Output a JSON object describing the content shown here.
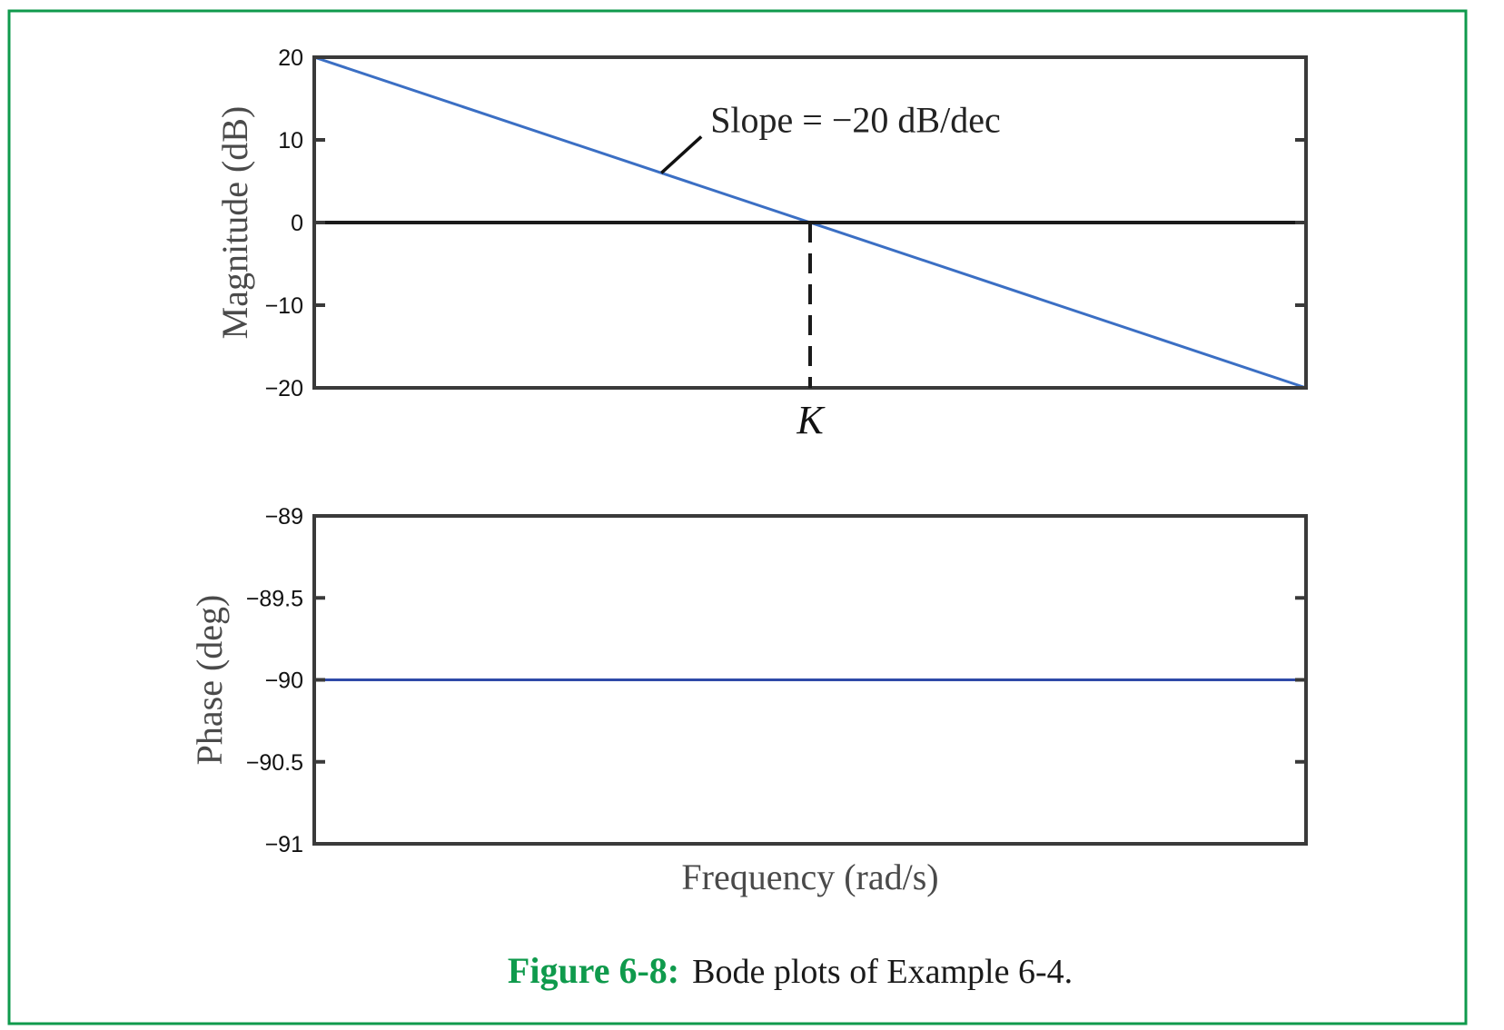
{
  "chart_data": [
    {
      "type": "line",
      "ylabel": "Magnitude (dB)",
      "ylim": [
        -20,
        20
      ],
      "yticks": [
        20,
        10,
        0,
        -10,
        -20
      ],
      "ytick_labels": [
        "20",
        "10",
        "0",
        "−10",
        "−20"
      ],
      "x_log_decades": [
        -1,
        1
      ],
      "series": [
        {
          "color": "#3b6fc4",
          "x": [
            0.1,
            10
          ],
          "y": [
            20,
            -20
          ]
        },
        {
          "color": "#1a1a1a",
          "x": [
            0.1,
            10
          ],
          "y": [
            0,
            0
          ]
        }
      ],
      "annotations": {
        "slope_label": "Slope = −20 dB/dec",
        "crossover_label": "K",
        "crossover_x": 1
      },
      "grid": false
    },
    {
      "type": "line",
      "ylabel": "Phase (deg)",
      "xlabel": "Frequency (rad/s)",
      "ylim": [
        -91,
        -89
      ],
      "yticks": [
        -89,
        -89.5,
        -90,
        -90.5,
        -91
      ],
      "ytick_labels": [
        "−89",
        "−89.5",
        "−90",
        "−90.5",
        "−91"
      ],
      "x_log_decades": [
        -1,
        1
      ],
      "series": [
        {
          "color": "#2f4aa8",
          "x": [
            0.1,
            10
          ],
          "y": [
            -90,
            -90
          ]
        }
      ],
      "grid": false
    }
  ],
  "caption": {
    "label": "Figure 6-8:",
    "text": "Bode plots of Example 6-4."
  },
  "colors": {
    "frame_border": "#0f9a4c",
    "caption_label": "#0f9a4c"
  }
}
